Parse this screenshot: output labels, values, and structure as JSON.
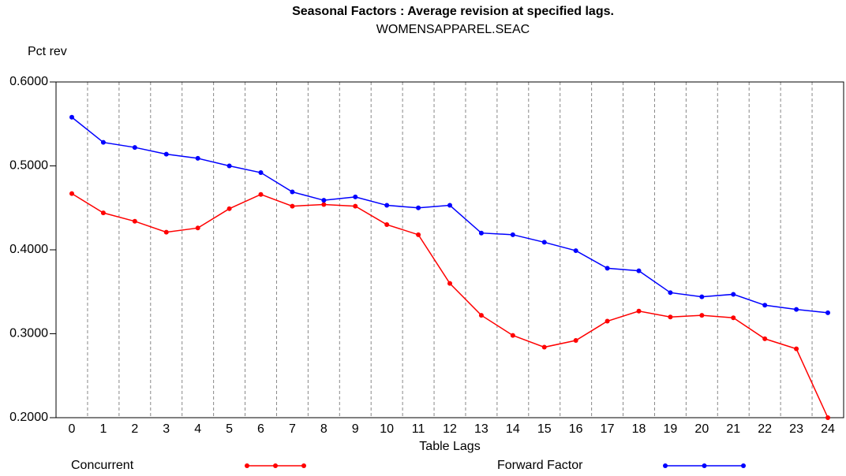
{
  "chart_data": {
    "type": "line",
    "title": "Seasonal Factors : Average revision at specified lags.",
    "subtitle": "WOMENSAPPAREL.SEAC",
    "y_label": "Pct rev",
    "x_label": "Table Lags",
    "categories": [
      "0",
      "1",
      "2",
      "3",
      "4",
      "5",
      "6",
      "7",
      "8",
      "9",
      "10",
      "11",
      "12",
      "13",
      "14",
      "15",
      "16",
      "17",
      "18",
      "19",
      "20",
      "21",
      "22",
      "23",
      "24"
    ],
    "series": [
      {
        "name": "Concurrent",
        "color": "#ff0000",
        "values": [
          0.467,
          0.444,
          0.434,
          0.421,
          0.426,
          0.449,
          0.466,
          0.452,
          0.454,
          0.452,
          0.43,
          0.418,
          0.36,
          0.322,
          0.298,
          0.284,
          0.292,
          0.315,
          0.327,
          0.32,
          0.322,
          0.319,
          0.294,
          0.282,
          0.2
        ]
      },
      {
        "name": "Forward Factor",
        "color": "#0000ff",
        "values": [
          0.558,
          0.528,
          0.522,
          0.514,
          0.509,
          0.5,
          0.492,
          0.469,
          0.459,
          0.463,
          0.453,
          0.45,
          0.453,
          0.42,
          0.418,
          0.409,
          0.399,
          0.378,
          0.375,
          0.349,
          0.344,
          0.347,
          0.334,
          0.329,
          0.325
        ]
      }
    ],
    "ylim": [
      0.2,
      0.6
    ],
    "yticks": [
      {
        "value": 0.2,
        "label": "0.2000"
      },
      {
        "value": 0.3,
        "label": "0.3000"
      },
      {
        "value": 0.4,
        "label": "0.4000"
      },
      {
        "value": 0.5,
        "label": "0.5000"
      },
      {
        "value": 0.6,
        "label": "0.6000"
      }
    ],
    "grid": true
  }
}
